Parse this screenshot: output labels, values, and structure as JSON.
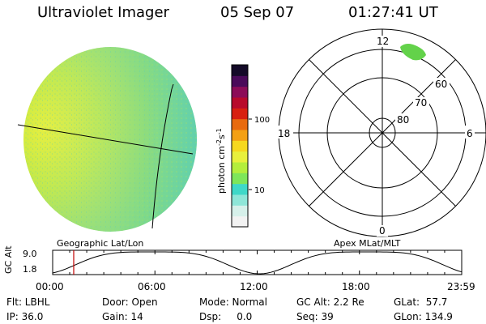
{
  "header": {
    "instrument": "Ultraviolet Imager",
    "date": "05 Sep 07",
    "time": "01:27:41 UT"
  },
  "colorbar": {
    "unit_prefix": "photon cm",
    "exp1": "-2",
    "mid": "s",
    "exp2": "-1",
    "ticks": [
      "100",
      "10"
    ],
    "colors": [
      "#f2f2f2",
      "#d6f0ea",
      "#8ee6d8",
      "#3fd8c8",
      "#7ee65a",
      "#b4ee3c",
      "#e8f03c",
      "#f6d81e",
      "#f4a014",
      "#e86a0e",
      "#d82010",
      "#b80a2c",
      "#8c0c58",
      "#4a0a5a",
      "#140a28"
    ]
  },
  "polar_plot": {
    "mlt_labels": [
      "12",
      "18",
      "6",
      "0"
    ],
    "lat_labels": [
      "60",
      "70",
      "80"
    ]
  },
  "labels": {
    "left_caption": "Geographic Lat/Lon",
    "right_caption": "Apex MLat/MLT"
  },
  "orbit": {
    "ylabel": "GC Alt",
    "ymax": "9.0",
    "ymin": "1.8",
    "xticks": [
      "00:00",
      "06:00",
      "12:00",
      "18:00",
      "23:59"
    ],
    "marker_time": "01:27"
  },
  "info": {
    "flt": "Flt: LBHL",
    "ip": "IP: 36.0",
    "door": "Door: Open",
    "gain": "Gain: 14",
    "mode": "Mode: Normal",
    "dsp": "Dsp:     0.0",
    "gcalt": "GC Alt: 2.2 Re",
    "seq": "Seq: 39",
    "glat": "GLat:  57.7",
    "glon": "GLon: 134.9"
  }
}
